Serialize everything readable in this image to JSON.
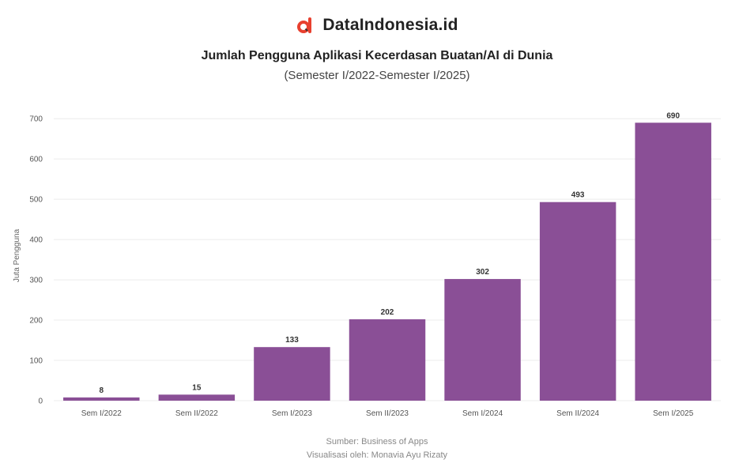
{
  "brand": {
    "name": "DataIndonesia.id",
    "logo": "dataindonesia-logo-icon",
    "logo_color": "#e8402f"
  },
  "chart_data": {
    "type": "bar",
    "title": "Jumlah Pengguna Aplikasi Kecerdasan Buatan/AI di Dunia",
    "subtitle": "(Semester I/2022-Semester I/2025)",
    "ylabel": "Juta Pengguna",
    "xlabel": "",
    "categories": [
      "Sem I/2022",
      "Sem II/2022",
      "Sem I/2023",
      "Sem II/2023",
      "Sem I/2024",
      "Sem II/2024",
      "Sem I/2025"
    ],
    "values": [
      8,
      15,
      133,
      202,
      302,
      493,
      690
    ],
    "data_labels": [
      "8",
      "15",
      "133",
      "202",
      "302",
      "493",
      "690"
    ],
    "yticks": [
      0,
      100,
      200,
      300,
      400,
      500,
      600,
      700
    ],
    "ylim": [
      0,
      720
    ],
    "bar_color": "#8a4f96",
    "grid": true,
    "legend": "none"
  },
  "footer": {
    "source": "Sumber: Business of Apps",
    "credit": "Visualisasi oleh: Monavia Ayu Rizaty"
  }
}
